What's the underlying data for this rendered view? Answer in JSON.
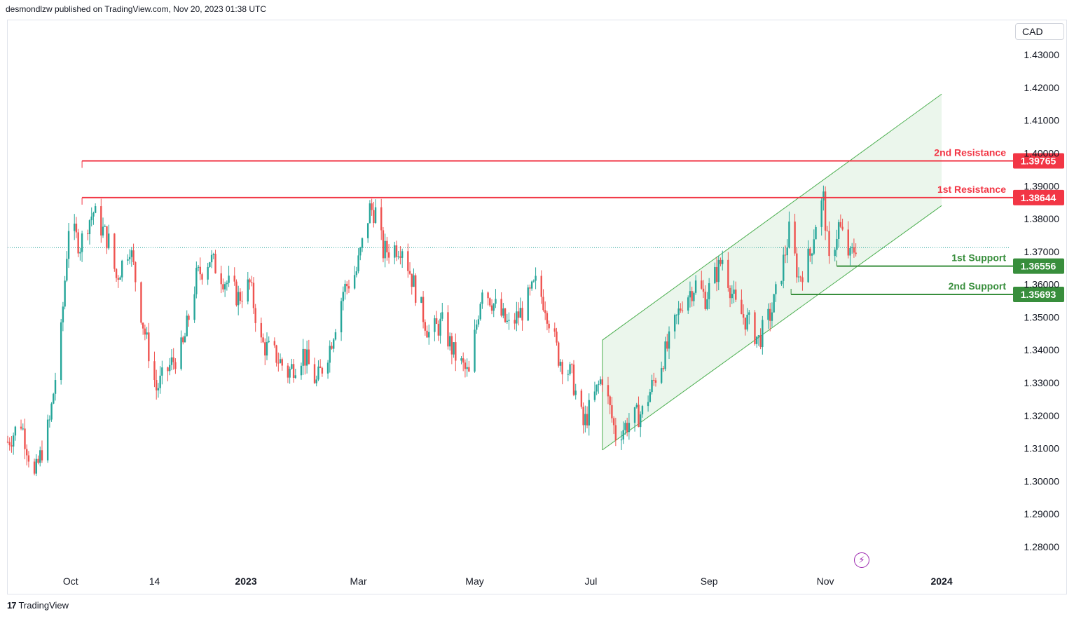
{
  "header": {
    "text": "desmondlzw published on TradingView.com, Nov 20, 2023 01:38 UTC"
  },
  "footer": {
    "logo": "17",
    "brand": "TradingView"
  },
  "currency_button": "CAD",
  "colors": {
    "up": "#26a69a",
    "down": "#ef5350",
    "resistance": "#f23645",
    "support": "#388e3c",
    "channel_fill": "#e8f5e9",
    "channel_line": "#4caf50"
  },
  "chart_data": {
    "type": "candlestick",
    "title": "",
    "ylim": [
      1.2725,
      1.4405
    ],
    "y_ticks": [
      1.28,
      1.29,
      1.3,
      1.31,
      1.32,
      1.33,
      1.34,
      1.35,
      1.36,
      1.37,
      1.38,
      1.39,
      1.4,
      1.41,
      1.42,
      1.43
    ],
    "x_ticks": [
      {
        "label": "Oct",
        "date": "2022-10-01",
        "bold": false
      },
      {
        "label": "14",
        "date": "2022-11-14",
        "bold": false
      },
      {
        "label": "2023",
        "date": "2023-01-01",
        "bold": true
      },
      {
        "label": "Mar",
        "date": "2023-03-01",
        "bold": false
      },
      {
        "label": "May",
        "date": "2023-05-01",
        "bold": false
      },
      {
        "label": "Jul",
        "date": "2023-07-01",
        "bold": false
      },
      {
        "label": "Sep",
        "date": "2023-09-01",
        "bold": false
      },
      {
        "label": "Nov",
        "date": "2023-11-01",
        "bold": false
      },
      {
        "label": "2024",
        "date": "2024-01-01",
        "bold": true
      }
    ],
    "xlim": [
      "2022-08-29",
      "2024-02-06"
    ],
    "price_points": [
      [
        "2022-08-29",
        1.312
      ],
      [
        "2022-09-05",
        1.318
      ],
      [
        "2022-09-12",
        1.301
      ],
      [
        "2022-09-20",
        1.318
      ],
      [
        "2022-09-26",
        1.345
      ],
      [
        "2022-09-30",
        1.378
      ],
      [
        "2022-10-06",
        1.372
      ],
      [
        "2022-10-10",
        1.379
      ],
      [
        "2022-10-13",
        1.382
      ],
      [
        "2022-10-21",
        1.373
      ],
      [
        "2022-10-25",
        1.362
      ],
      [
        "2022-11-01",
        1.372
      ],
      [
        "2022-11-08",
        1.348
      ],
      [
        "2022-11-15",
        1.328
      ],
      [
        "2022-11-22",
        1.335
      ],
      [
        "2022-11-29",
        1.341
      ],
      [
        "2022-12-06",
        1.362
      ],
      [
        "2022-12-13",
        1.368
      ],
      [
        "2022-12-20",
        1.362
      ],
      [
        "2022-12-28",
        1.356
      ],
      [
        "2023-01-03",
        1.36
      ],
      [
        "2023-01-09",
        1.342
      ],
      [
        "2023-01-17",
        1.338
      ],
      [
        "2023-01-23",
        1.333
      ],
      [
        "2023-01-31",
        1.339
      ],
      [
        "2023-02-07",
        1.33
      ],
      [
        "2023-02-14",
        1.341
      ],
      [
        "2023-02-21",
        1.358
      ],
      [
        "2023-02-28",
        1.364
      ],
      [
        "2023-03-07",
        1.383
      ],
      [
        "2023-03-10",
        1.382
      ],
      [
        "2023-03-14",
        1.37
      ],
      [
        "2023-03-24",
        1.372
      ],
      [
        "2023-03-31",
        1.358
      ],
      [
        "2023-04-07",
        1.345
      ],
      [
        "2023-04-14",
        1.348
      ],
      [
        "2023-04-20",
        1.339
      ],
      [
        "2023-04-28",
        1.332
      ],
      [
        "2023-05-05",
        1.36
      ],
      [
        "2023-05-12",
        1.353
      ],
      [
        "2023-05-19",
        1.347
      ],
      [
        "2023-05-26",
        1.352
      ],
      [
        "2023-06-02",
        1.36
      ],
      [
        "2023-06-07",
        1.354
      ],
      [
        "2023-06-14",
        1.338
      ],
      [
        "2023-06-21",
        1.332
      ],
      [
        "2023-06-27",
        1.317
      ],
      [
        "2023-07-03",
        1.326
      ],
      [
        "2023-07-07",
        1.332
      ],
      [
        "2023-07-14",
        1.314
      ],
      [
        "2023-07-21",
        1.318
      ],
      [
        "2023-07-28",
        1.321
      ],
      [
        "2023-08-04",
        1.332
      ],
      [
        "2023-08-11",
        1.342
      ],
      [
        "2023-08-18",
        1.355
      ],
      [
        "2023-08-25",
        1.36
      ],
      [
        "2023-08-30",
        1.356
      ],
      [
        "2023-09-06",
        1.365
      ],
      [
        "2023-09-08",
        1.368
      ],
      [
        "2023-09-15",
        1.353
      ],
      [
        "2023-09-22",
        1.348
      ],
      [
        "2023-09-27",
        1.343
      ],
      [
        "2023-10-04",
        1.352
      ],
      [
        "2023-10-09",
        1.364
      ],
      [
        "2023-10-13",
        1.376
      ],
      [
        "2023-10-18",
        1.362
      ],
      [
        "2023-10-24",
        1.369
      ],
      [
        "2023-10-27",
        1.379
      ],
      [
        "2023-10-31",
        1.386
      ],
      [
        "2023-11-03",
        1.366
      ],
      [
        "2023-11-08",
        1.378
      ],
      [
        "2023-11-14",
        1.368
      ],
      [
        "2023-11-17",
        1.372
      ]
    ],
    "channel": {
      "upper": [
        [
          "2023-07-07",
          1.343
        ],
        [
          "2024-01-01",
          1.418
        ]
      ],
      "lower": [
        [
          "2023-07-07",
          1.3095
        ],
        [
          "2024-01-01",
          1.384
        ]
      ]
    },
    "last_price": 1.3712,
    "levels": [
      {
        "label": "2nd Resistance",
        "value": 1.39765,
        "value_text": "1.39765",
        "kind": "resistance",
        "from": "2022-10-07"
      },
      {
        "label": "1st Resistance",
        "value": 1.38644,
        "value_text": "1.38644",
        "kind": "resistance",
        "from": "2022-10-07"
      },
      {
        "label": "1st Support",
        "value": 1.36556,
        "value_text": "1.36556",
        "kind": "support",
        "from": "2023-11-07"
      },
      {
        "label": "2nd Support",
        "value": 1.35693,
        "value_text": "1.35693",
        "kind": "support",
        "from": "2023-10-14"
      }
    ]
  }
}
